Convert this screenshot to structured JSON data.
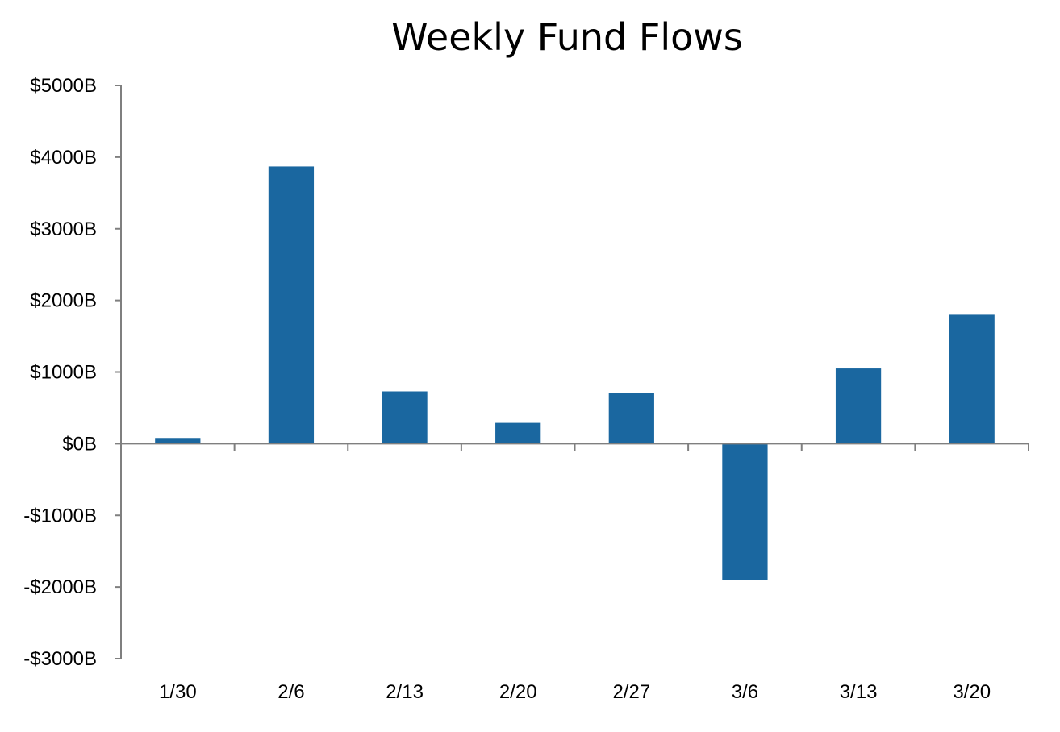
{
  "chart_data": {
    "type": "bar",
    "title": "Weekly Fund Flows",
    "xlabel": "",
    "ylabel": "",
    "categories": [
      "1/30",
      "2/6",
      "2/13",
      "2/20",
      "2/27",
      "3/6",
      "3/13",
      "3/20"
    ],
    "values": [
      80,
      3870,
      730,
      290,
      710,
      -1900,
      1050,
      1800
    ],
    "ylim": [
      -3000,
      5000
    ],
    "ytick_values": [
      5000,
      4000,
      3000,
      2000,
      1000,
      0,
      -1000,
      -2000,
      -3000
    ],
    "ytick_labels": [
      "$5000B",
      "$4000B",
      "$3000B",
      "$2000B",
      "$1000B",
      "$0B",
      "-$1000B",
      "-$2000B",
      "-$3000B"
    ],
    "grid": false,
    "legend": "none",
    "bar_color": "#1a67a0",
    "axis_color": "#7f7f7f"
  }
}
